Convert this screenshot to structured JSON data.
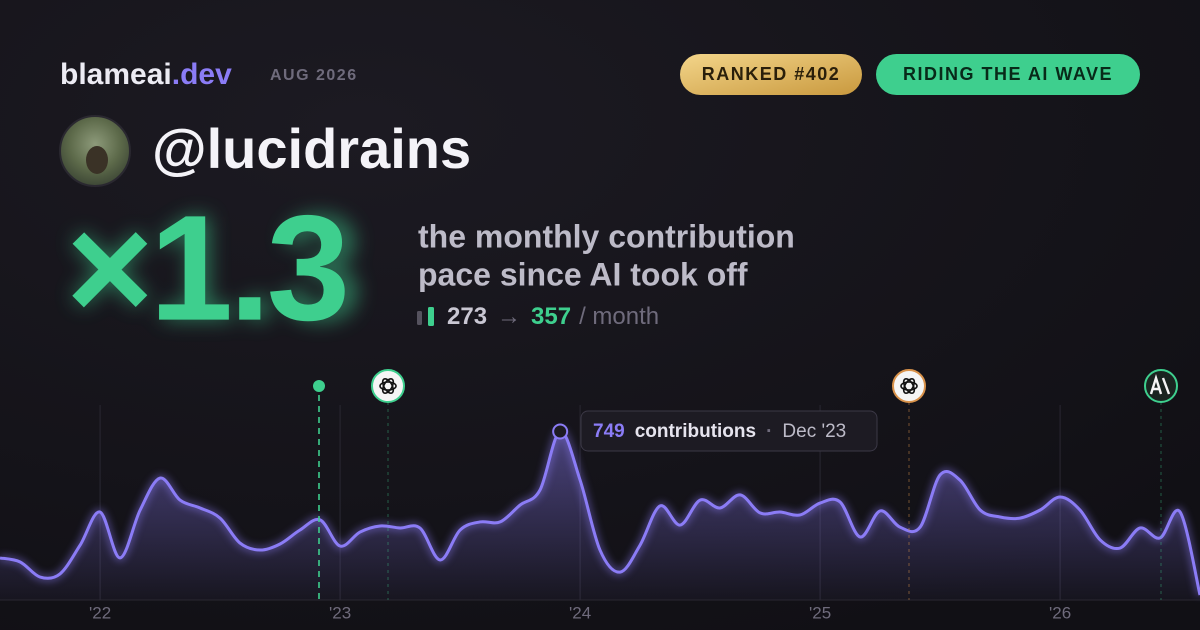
{
  "header": {
    "brand": "blameai",
    "brand_tld": ".dev",
    "date": "AUG 2026",
    "badges": [
      "RANKED #402",
      "RIDING THE AI WAVE"
    ]
  },
  "user": {
    "handle": "@lucidrains"
  },
  "headline": {
    "multiplier": "×1.3",
    "description_lines": [
      "the monthly contribution",
      "pace since AI took off"
    ],
    "before": 273,
    "arrow": "→",
    "after": 357,
    "unit": "/ month"
  },
  "chart_data": {
    "type": "area",
    "color": "#8b7cf6",
    "x": [
      2021.583,
      2021.667,
      2021.75,
      2021.833,
      2021.917,
      2022,
      2022.083,
      2022.167,
      2022.25,
      2022.333,
      2022.417,
      2022.5,
      2022.583,
      2022.667,
      2022.75,
      2022.833,
      2022.917,
      2023,
      2023.083,
      2023.167,
      2023.25,
      2023.333,
      2023.417,
      2023.5,
      2023.583,
      2023.667,
      2023.75,
      2023.833,
      2023.917,
      2024,
      2024.083,
      2024.167,
      2024.25,
      2024.333,
      2024.417,
      2024.5,
      2024.583,
      2024.667,
      2024.75,
      2024.833,
      2024.917,
      2025,
      2025.083,
      2025.167,
      2025.25,
      2025.333,
      2025.417,
      2025.5,
      2025.583,
      2025.667,
      2025.75,
      2025.833,
      2025.917,
      2026,
      2026.083,
      2026.167,
      2026.25,
      2026.333,
      2026.417,
      2026.5,
      2026.583
    ],
    "values": [
      187,
      169,
      102,
      116,
      244,
      391,
      187,
      400,
      542,
      444,
      409,
      364,
      253,
      222,
      249,
      311,
      356,
      240,
      302,
      329,
      320,
      320,
      178,
      311,
      347,
      347,
      422,
      489,
      749,
      533,
      222,
      124,
      244,
      418,
      333,
      444,
      409,
      467,
      387,
      391,
      378,
      431,
      436,
      280,
      396,
      324,
      324,
      556,
      533,
      400,
      369,
      364,
      400,
      458,
      400,
      267,
      231,
      320,
      276,
      391,
      22
    ],
    "xlim": [
      2021.583,
      2026.583
    ],
    "ylim": [
      0,
      800
    ],
    "xticks": [
      {
        "value": 2022,
        "label": "'22"
      },
      {
        "value": 2023,
        "label": "'23"
      },
      {
        "value": 2024,
        "label": "'24"
      },
      {
        "value": 2025,
        "label": "'25"
      },
      {
        "value": 2026,
        "label": "'26"
      }
    ],
    "grid": true,
    "tooltip": {
      "label": "contributions",
      "date": "Dec '23"
    }
  }
}
